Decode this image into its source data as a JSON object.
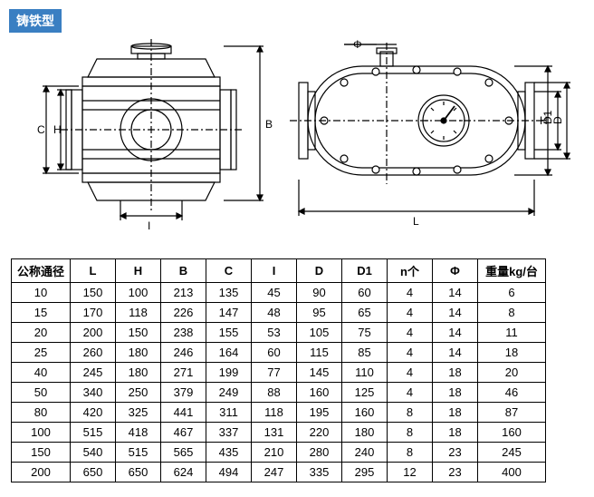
{
  "label": "铸铁型",
  "table": {
    "headers": [
      "公称通径",
      "L",
      "H",
      "B",
      "C",
      "I",
      "D",
      "D1",
      "n个",
      "Φ",
      "重量kg/台"
    ],
    "rows": [
      [
        "10",
        "150",
        "100",
        "213",
        "135",
        "45",
        "90",
        "60",
        "4",
        "14",
        "6"
      ],
      [
        "15",
        "170",
        "118",
        "226",
        "147",
        "48",
        "95",
        "65",
        "4",
        "14",
        "8"
      ],
      [
        "20",
        "200",
        "150",
        "238",
        "155",
        "53",
        "105",
        "75",
        "4",
        "14",
        "11"
      ],
      [
        "25",
        "260",
        "180",
        "246",
        "164",
        "60",
        "115",
        "85",
        "4",
        "14",
        "18"
      ],
      [
        "40",
        "245",
        "180",
        "271",
        "199",
        "77",
        "145",
        "110",
        "4",
        "18",
        "20"
      ],
      [
        "50",
        "340",
        "250",
        "379",
        "249",
        "88",
        "160",
        "125",
        "4",
        "18",
        "46"
      ],
      [
        "80",
        "420",
        "325",
        "441",
        "311",
        "118",
        "195",
        "160",
        "8",
        "18",
        "87"
      ],
      [
        "100",
        "515",
        "418",
        "467",
        "337",
        "131",
        "220",
        "180",
        "8",
        "18",
        "160"
      ],
      [
        "150",
        "540",
        "515",
        "565",
        "435",
        "210",
        "280",
        "240",
        "8",
        "23",
        "245"
      ],
      [
        "200",
        "650",
        "650",
        "624",
        "494",
        "247",
        "335",
        "295",
        "12",
        "23",
        "400"
      ]
    ]
  },
  "dims": {
    "left": [
      "C",
      "H",
      "I",
      "B"
    ],
    "right": [
      "Φ",
      "H",
      "D1",
      "D",
      "L"
    ]
  },
  "style": {
    "stroke": "#000000",
    "stroke_width": 1.2,
    "bg": "#ffffff",
    "tag_bg": "#3a7fc2",
    "tag_fg": "#ffffff"
  }
}
